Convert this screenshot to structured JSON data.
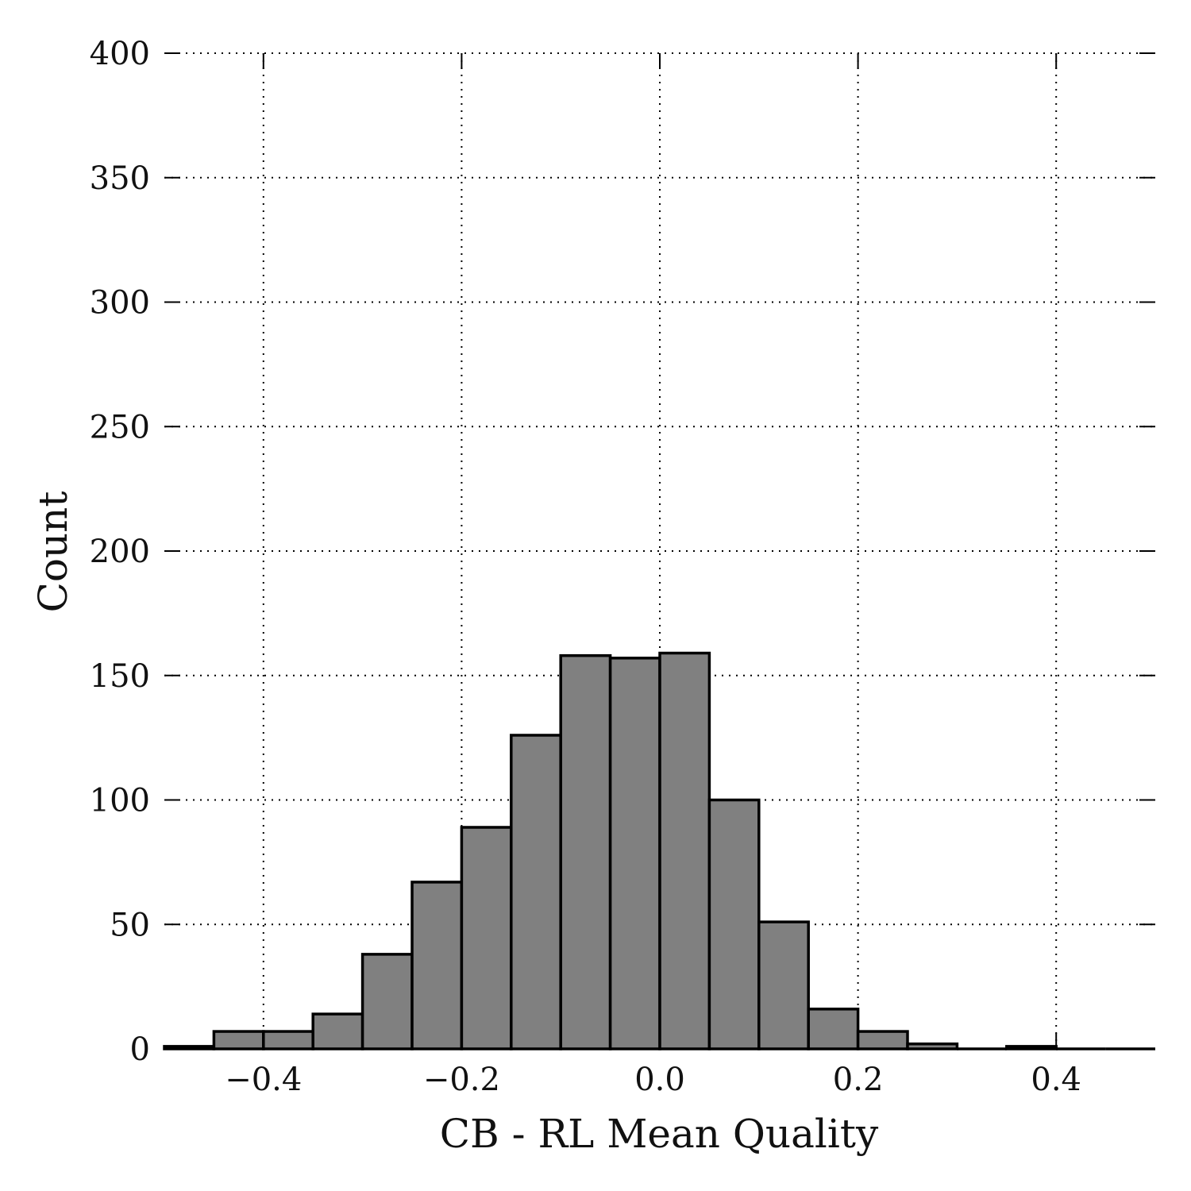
{
  "chart_data": {
    "type": "bar",
    "subtype": "histogram",
    "xlabel": "CB - RL Mean Quality",
    "ylabel": "Count",
    "xlim": [
      -0.5,
      0.5
    ],
    "ylim": [
      0,
      400
    ],
    "x_ticks": [
      -0.4,
      -0.2,
      0.0,
      0.2,
      0.4
    ],
    "x_tick_labels": [
      "−0.4",
      "−0.2",
      "0.0",
      "0.2",
      "0.4"
    ],
    "y_ticks": [
      0,
      50,
      100,
      150,
      200,
      250,
      300,
      350,
      400
    ],
    "y_tick_labels": [
      "0",
      "50",
      "100",
      "150",
      "200",
      "250",
      "300",
      "350",
      "400"
    ],
    "grid": true,
    "bar_color": "#808080",
    "edge_color": "#000000",
    "bin_edges": [
      -0.5,
      -0.45,
      -0.4,
      -0.35,
      -0.3,
      -0.25,
      -0.2,
      -0.15,
      -0.1,
      -0.05,
      0.0,
      0.05,
      0.1,
      0.15,
      0.2,
      0.25,
      0.3,
      0.35,
      0.4,
      0.45,
      0.5
    ],
    "values": [
      1,
      7,
      7,
      14,
      38,
      67,
      89,
      126,
      158,
      157,
      159,
      100,
      51,
      16,
      7,
      2,
      0,
      1,
      0,
      0
    ]
  }
}
